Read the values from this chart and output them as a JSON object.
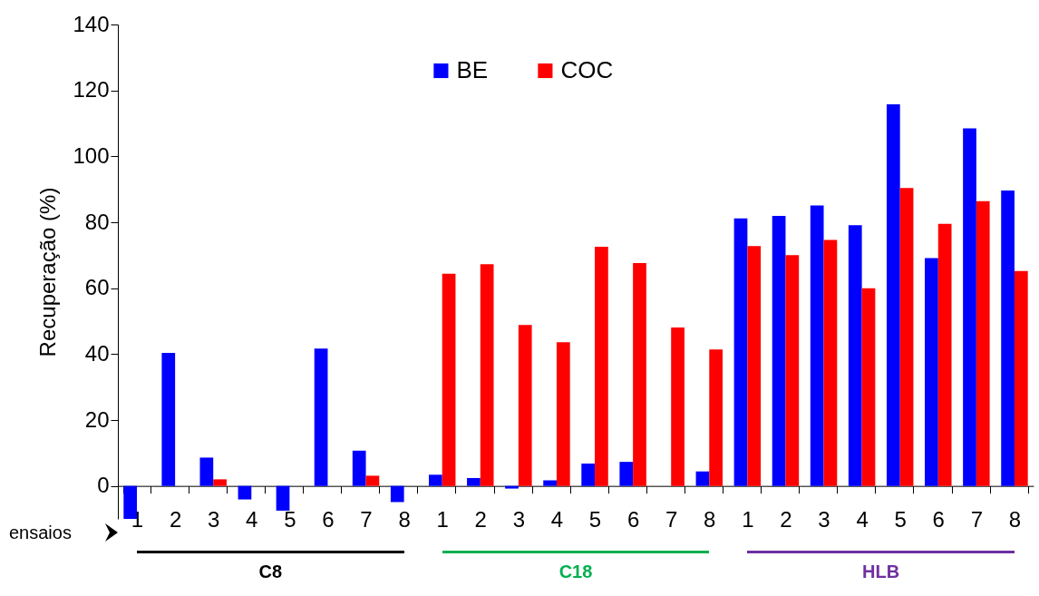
{
  "chart_data": {
    "type": "bar",
    "ylabel": "Recuperação (%)",
    "categories": [
      "1",
      "2",
      "3",
      "4",
      "5",
      "6",
      "7",
      "8",
      "1",
      "2",
      "3",
      "4",
      "5",
      "6",
      "7",
      "8",
      "1",
      "2",
      "3",
      "4",
      "5",
      "6",
      "7",
      "8"
    ],
    "series": [
      {
        "name": "BE",
        "color": "#0000ff",
        "values": [
          -10,
          40.4,
          8.6,
          -4.1,
          -7.5,
          41.7,
          10.7,
          -4.9,
          3.4,
          2.4,
          -0.8,
          1.7,
          6.8,
          7.3,
          0,
          4.4,
          81.2,
          81.9,
          85.1,
          79.1,
          115.8,
          69.1,
          108.5,
          89.6
        ]
      },
      {
        "name": "COC",
        "color": "#ff0000",
        "values": [
          0,
          0,
          2,
          0,
          0,
          0,
          3.1,
          0,
          64.4,
          67.3,
          48.8,
          43.6,
          72.6,
          67.6,
          48.1,
          41.4,
          72.8,
          70,
          74.6,
          60,
          90.4,
          79.5,
          86.4,
          65.2
        ]
      }
    ],
    "ylim": [
      -10,
      140
    ],
    "yticks": [
      0,
      20,
      40,
      60,
      80,
      100,
      120,
      140
    ],
    "legend": "top",
    "annotations": [
      "ensaios",
      "C8",
      "C18",
      "HLB"
    ]
  }
}
